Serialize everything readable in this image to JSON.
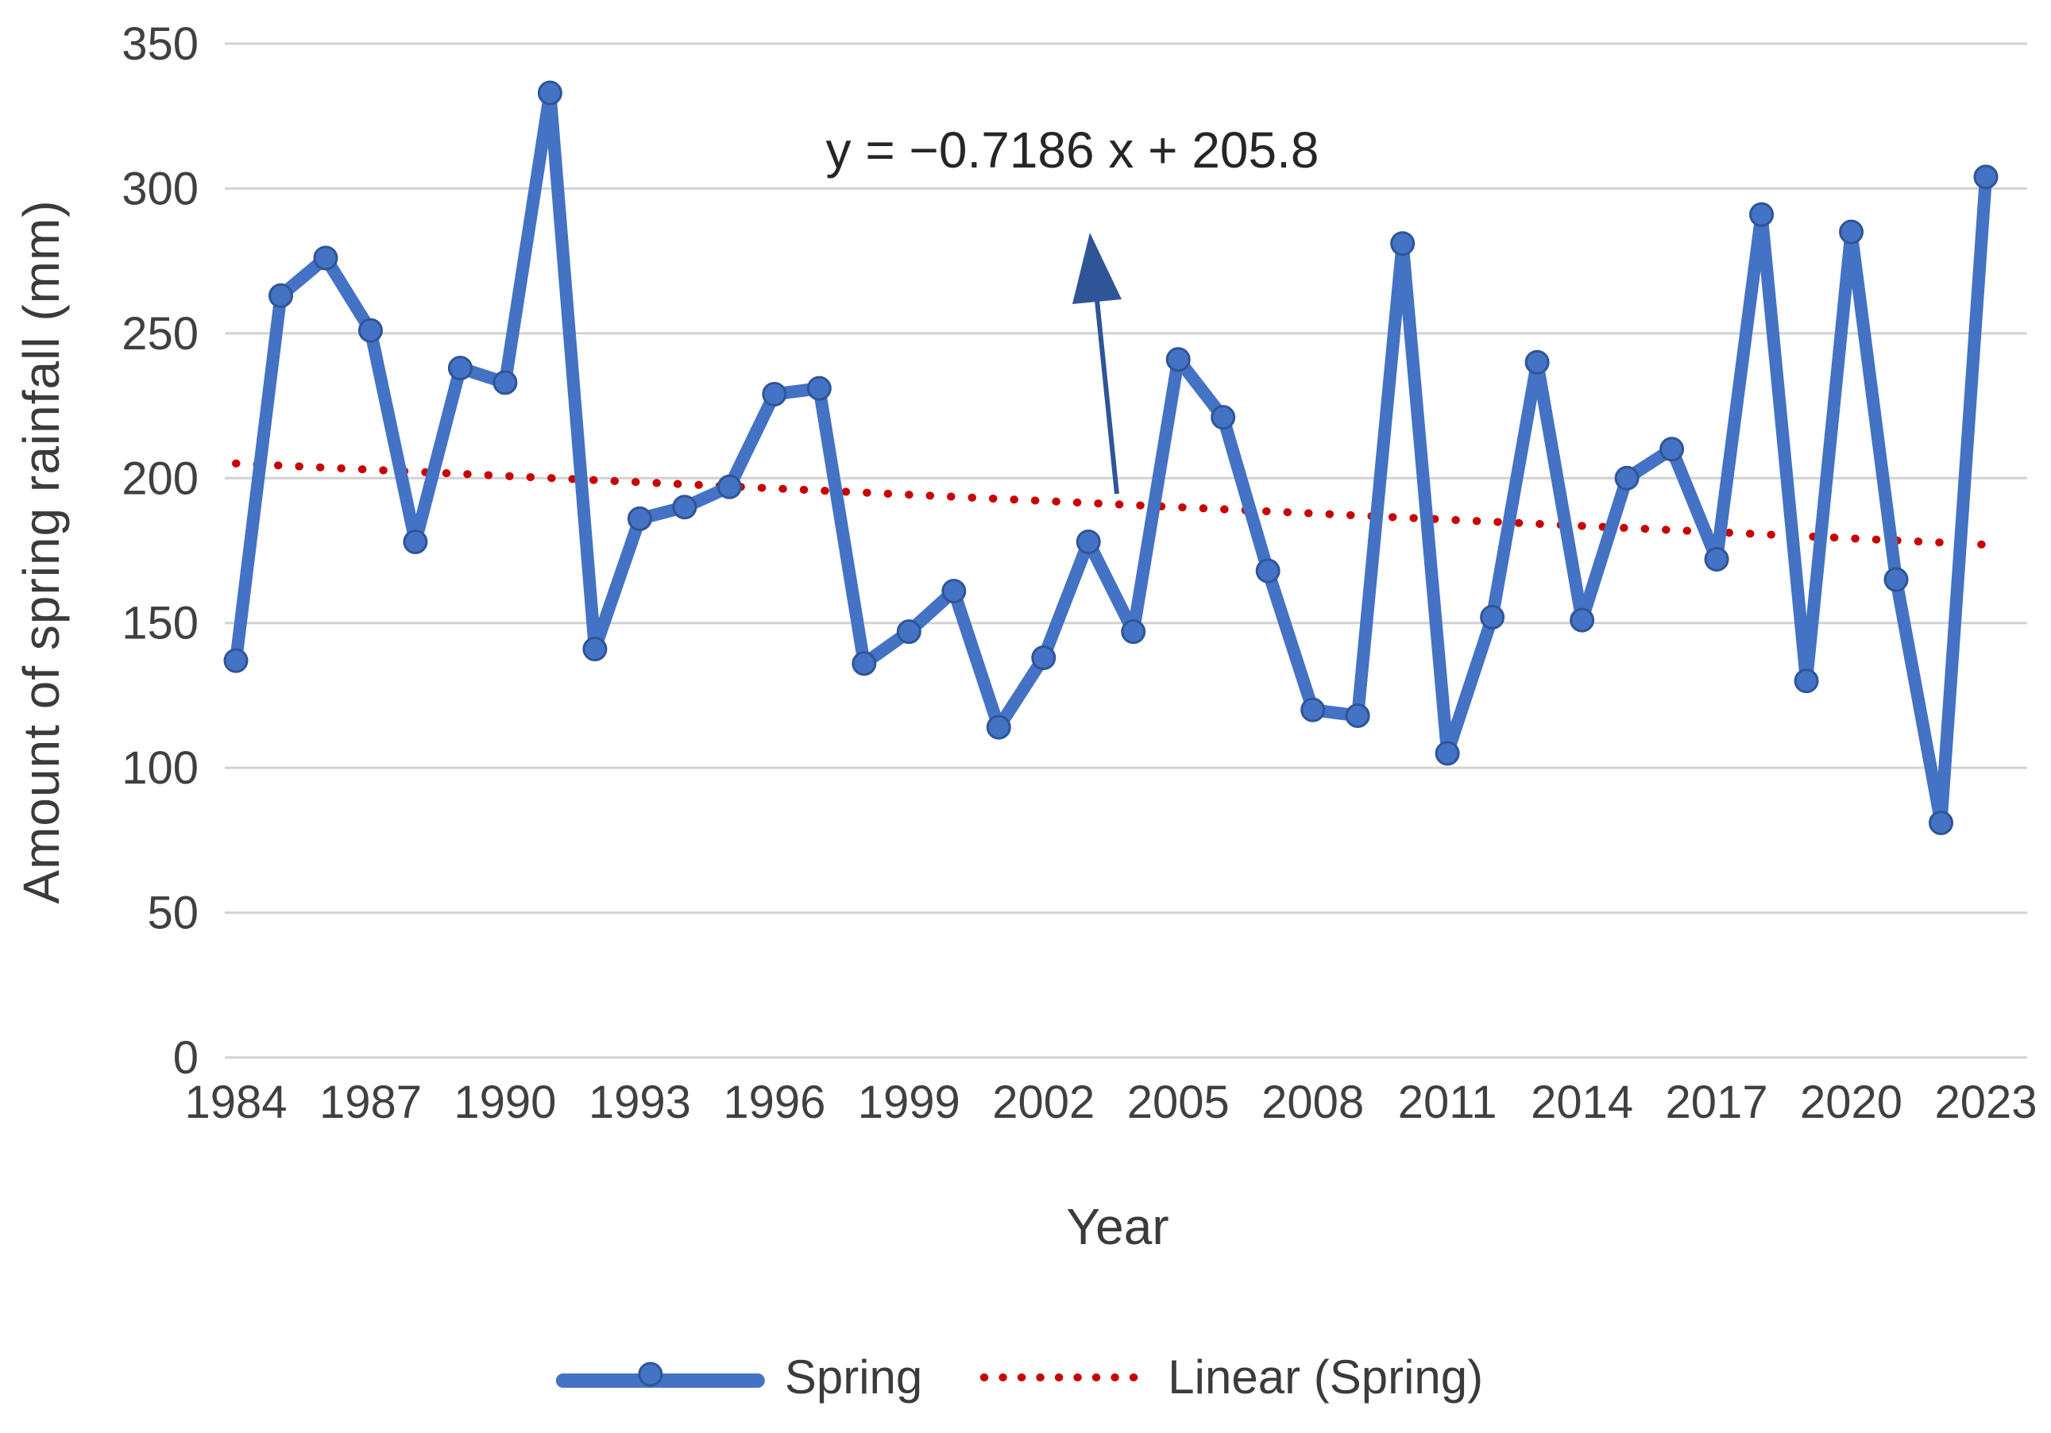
{
  "chart_data": {
    "type": "line",
    "title": "",
    "xlabel": "Year",
    "ylabel": "Amount of spring rainfall (mm)",
    "x": [
      1984,
      1985,
      1986,
      1987,
      1988,
      1989,
      1990,
      1991,
      1992,
      1993,
      1994,
      1995,
      1996,
      1997,
      1998,
      1999,
      2000,
      2001,
      2002,
      2003,
      2004,
      2005,
      2006,
      2007,
      2008,
      2009,
      2010,
      2011,
      2012,
      2013,
      2014,
      2015,
      2016,
      2017,
      2018,
      2019,
      2020,
      2021,
      2022,
      2023
    ],
    "series": [
      {
        "name": "Spring",
        "color": "#4472C4",
        "marker_outline_color": "#2F5597",
        "values": [
          137,
          263,
          276,
          251,
          178,
          238,
          233,
          333,
          141,
          186,
          190,
          197,
          229,
          231,
          136,
          147,
          161,
          114,
          138,
          178,
          147,
          241,
          221,
          168,
          120,
          118,
          281,
          105,
          152,
          240,
          151,
          200,
          210,
          172,
          291,
          130,
          285,
          165,
          81,
          304
        ]
      }
    ],
    "trendline": {
      "name": "Linear (Spring)",
      "color": "#C80000",
      "slope": -0.7186,
      "intercept": 205.8,
      "equation": "y = −0.7186 x + 205.8"
    },
    "ylim": [
      0,
      350
    ],
    "ytick_step": 50,
    "ytick_labels": [
      "0",
      "50",
      "100",
      "150",
      "200",
      "250",
      "300",
      "350"
    ],
    "xtick_labels": [
      "1984",
      "1987",
      "1990",
      "1993",
      "1996",
      "1999",
      "2002",
      "2005",
      "2008",
      "2011",
      "2014",
      "2017",
      "2020",
      "2023"
    ],
    "xtick_every": 3,
    "grid": "horizontal-only",
    "legend_position": "bottom",
    "annotation_arrow_color": "#2F5597",
    "gridline_color": "#D2D2D2",
    "tick_text_color": "#404040"
  }
}
